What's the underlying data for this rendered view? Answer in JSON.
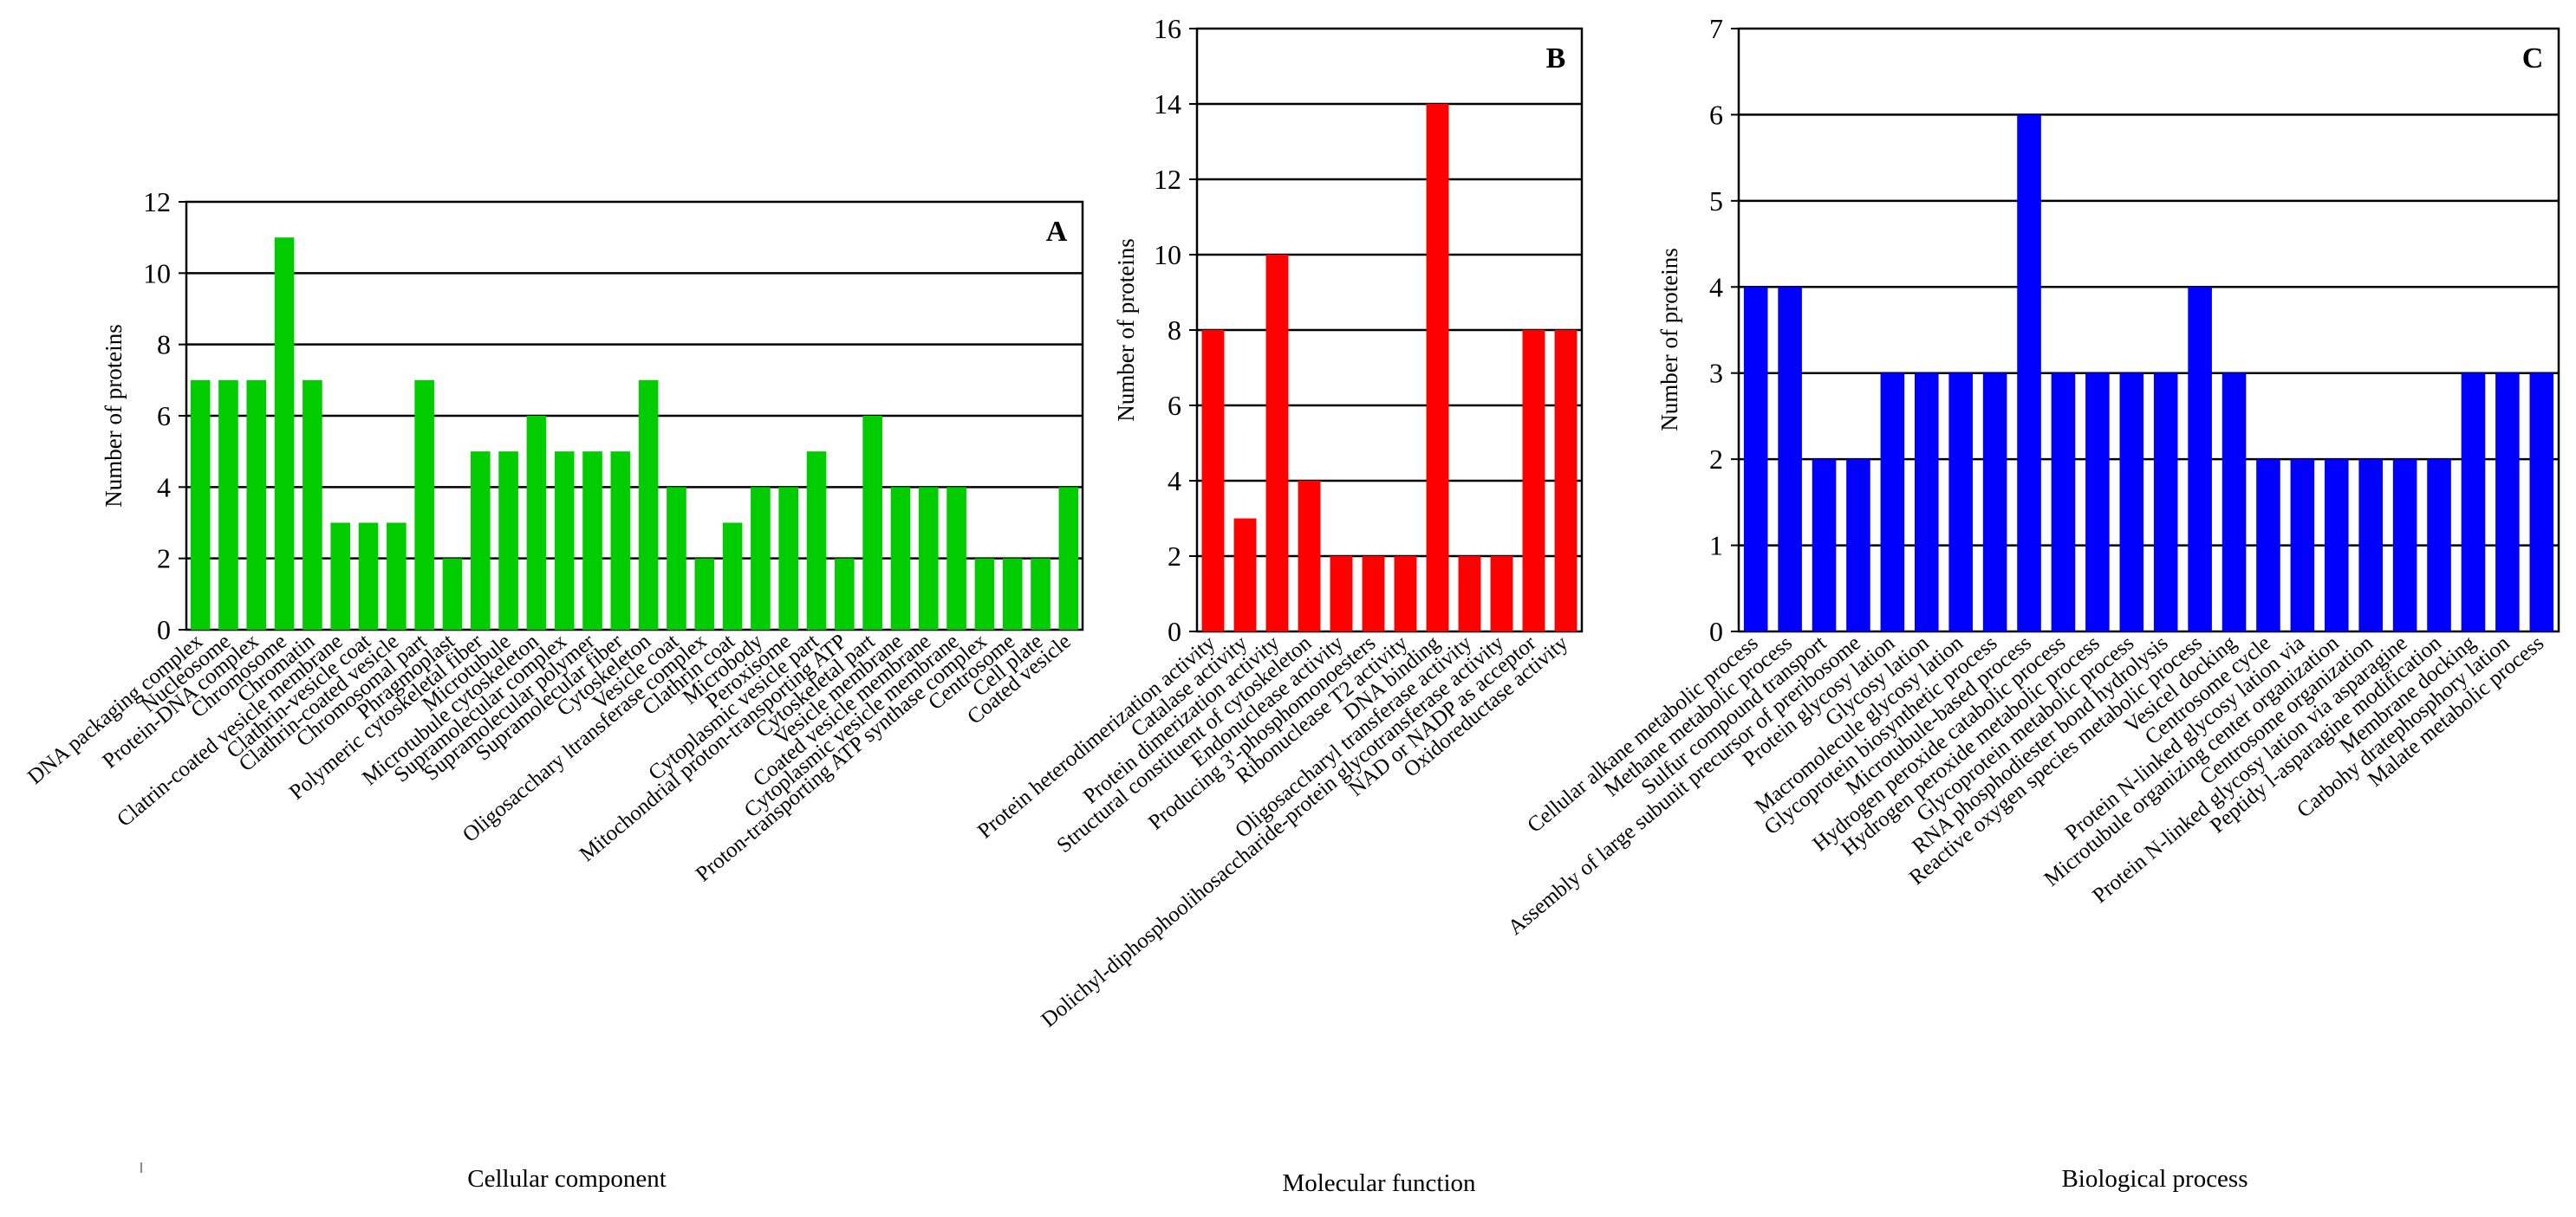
{
  "chart_data": [
    {
      "type": "bar",
      "panel_label": "A",
      "caption": "Cellular component",
      "ylabel": "Number of proteins",
      "ylim": [
        0,
        12
      ],
      "yticks": [
        0,
        2,
        4,
        6,
        8,
        10,
        12
      ],
      "bar_color": "#00cc00",
      "categories": [
        "DNA packaging complex",
        "Nucleosome",
        "Protein-DNA complex",
        "Chromosome",
        "Chromatin",
        "Clatrin-coated vesicle membrane",
        "Clathrin-vesicle coat",
        "Clathrin-coated vesicle",
        "Chromosomal part",
        "Phragmoplast",
        "Polymeric cytoskeletal fiber",
        "Microtubule",
        "Microtubule cytoskeleton",
        "Supramolecular complex",
        "Supramolecular polymer",
        "Supramolecular fiber",
        "Cytoskeleton",
        "Vesicle coat",
        "Oligosacchary ltransferase complex",
        "Clathrin coat",
        "Microbody",
        "Peroxisome",
        "Cytoplasmic vesicle part",
        "Mitochondrial proton-transporting ATP",
        "Cytoskeletal part",
        "Vesicle membrane",
        "Coated vesicle membrane",
        "Cytoplasmic vesicle membrane",
        "Proton-transporting ATP synthase complex",
        "Centrosome",
        "Cell plate",
        "Coated vesicle"
      ],
      "values": [
        7,
        7,
        7,
        11,
        7,
        3,
        3,
        3,
        7,
        2,
        5,
        5,
        6,
        5,
        5,
        5,
        7,
        4,
        2,
        3,
        4,
        4,
        5,
        2,
        6,
        4,
        4,
        4,
        2,
        2,
        2,
        4
      ]
    },
    {
      "type": "bar",
      "panel_label": "B",
      "caption": "Molecular function",
      "ylabel": "Number of proteins",
      "ylim": [
        0,
        16
      ],
      "yticks": [
        0,
        2,
        4,
        6,
        8,
        10,
        12,
        14,
        16
      ],
      "bar_color": "#ff0000",
      "categories": [
        "Protein heterodimerization activity",
        "Catalase activity",
        "Protein dimerization activity",
        "Structural constituent of cytoskeleton",
        "Endonuclease activity",
        "Producing 3'-phosphomonoesters",
        "Ribonuclease T2 activity",
        "DNA binding",
        "Oligosaccharyl transferase activity",
        "Dolichyl-diphosphoolihosaccharide-protein glycotransferase activity",
        "NAD or NADP as acceptor",
        "Oxidoreductase activity"
      ],
      "values": [
        8,
        3,
        10,
        4,
        2,
        2,
        2,
        14,
        2,
        2,
        8,
        8
      ]
    },
    {
      "type": "bar",
      "panel_label": "C",
      "caption": "Biological process",
      "ylabel": "Number of proteins",
      "ylim": [
        0,
        7
      ],
      "yticks": [
        0,
        1,
        2,
        3,
        4,
        5,
        6,
        7
      ],
      "bar_color": "#0000ff",
      "categories": [
        "Cellular alkane metabolic process",
        "Methane metabolic process",
        "Sulfur compound transport",
        "Assembly of large subunit precursor of preribosome",
        "Protein glycosy lation",
        "Glycosy lation",
        "Macromolecule glycosy lation",
        "Glycoprotein biosynthetic process",
        "Microtubule-based process",
        "Hydrogen peroxide catabolic process",
        "Hydrogen peroxide metabolic process",
        "Glycoprotein metabolic process",
        "RNA phosphodiester bond hydrolysis",
        "Reactive oxygen species metabolic process",
        "Vesicel docking",
        "Centrosome cycle",
        "Protein N-linked glycosy lation via",
        "Microtubule organizing center organization",
        "Centrosome organization",
        "Protein N-linked glycosy lation via asparagine",
        "Peptidy l-asparagine modification",
        "Membrane docking",
        "Carbohy dratephosphory lation",
        "Malate metabolic process"
      ],
      "values": [
        4,
        4,
        2,
        2,
        3,
        3,
        3,
        3,
        6,
        3,
        3,
        3,
        3,
        4,
        3,
        2,
        2,
        2,
        2,
        2,
        2,
        3,
        3,
        3
      ]
    }
  ]
}
